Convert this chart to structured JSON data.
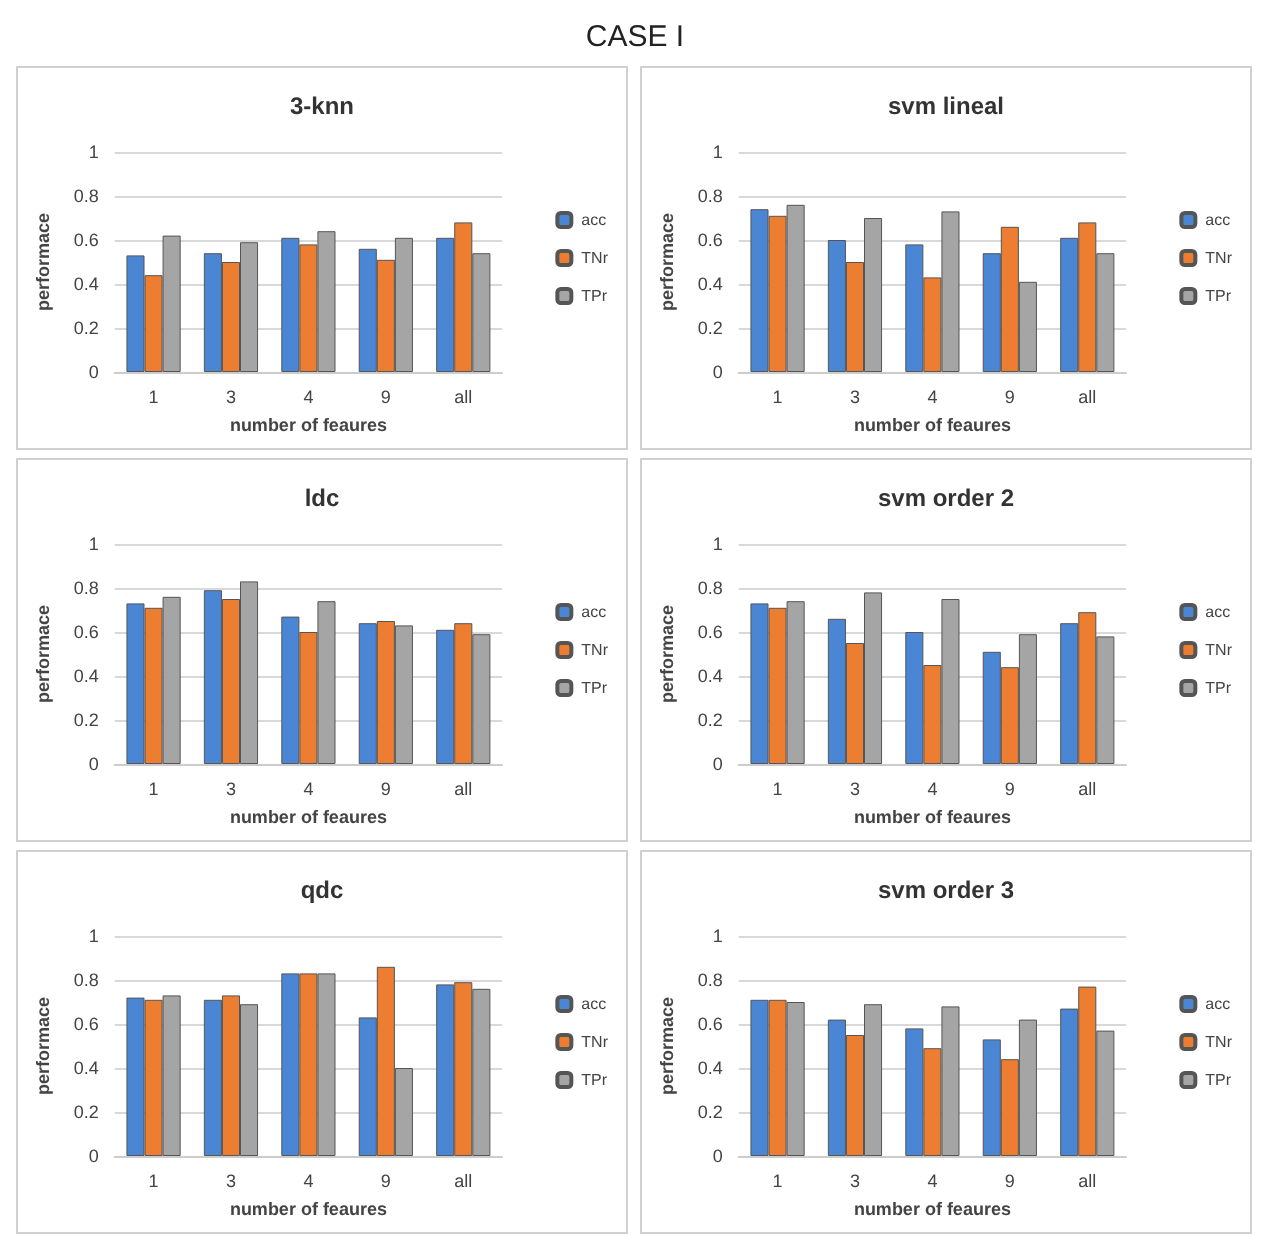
{
  "chart_data": [
    {
      "type": "other",
      "title": "CASE I"
    },
    {
      "type": "bar",
      "title": "3-knn",
      "xlabel": "number of feaures",
      "ylabel": "performace",
      "categories": [
        "1",
        "3",
        "4",
        "9",
        "all"
      ],
      "ylim": [
        0,
        1
      ],
      "yticks": [
        0,
        0.2,
        0.4,
        0.6,
        0.8,
        1
      ],
      "grid": "y",
      "legend": "right",
      "series": [
        {
          "name": "acc",
          "color": "#4a86d4",
          "values": [
            0.53,
            0.54,
            0.61,
            0.56,
            0.61
          ]
        },
        {
          "name": "TNr",
          "color": "#ed7d31",
          "values": [
            0.44,
            0.5,
            0.58,
            0.51,
            0.68
          ]
        },
        {
          "name": "TPr",
          "color": "#a5a5a5",
          "values": [
            0.62,
            0.59,
            0.64,
            0.61,
            0.54
          ]
        }
      ]
    },
    {
      "type": "bar",
      "title": "svm lineal",
      "xlabel": "number of feaures",
      "ylabel": "performace",
      "categories": [
        "1",
        "3",
        "4",
        "9",
        "all"
      ],
      "ylim": [
        0,
        1
      ],
      "yticks": [
        0,
        0.2,
        0.4,
        0.6,
        0.8,
        1
      ],
      "grid": "y",
      "legend": "right",
      "series": [
        {
          "name": "acc",
          "color": "#4a86d4",
          "values": [
            0.74,
            0.6,
            0.58,
            0.54,
            0.61
          ]
        },
        {
          "name": "TNr",
          "color": "#ed7d31",
          "values": [
            0.71,
            0.5,
            0.43,
            0.66,
            0.68
          ]
        },
        {
          "name": "TPr",
          "color": "#a5a5a5",
          "values": [
            0.76,
            0.7,
            0.73,
            0.41,
            0.54
          ]
        }
      ]
    },
    {
      "type": "bar",
      "title": "ldc",
      "xlabel": "number of feaures",
      "ylabel": "performace",
      "categories": [
        "1",
        "3",
        "4",
        "9",
        "all"
      ],
      "ylim": [
        0,
        1
      ],
      "yticks": [
        0,
        0.2,
        0.4,
        0.6,
        0.8,
        1
      ],
      "grid": "y",
      "legend": "right",
      "series": [
        {
          "name": "acc",
          "color": "#4a86d4",
          "values": [
            0.73,
            0.79,
            0.67,
            0.64,
            0.61
          ]
        },
        {
          "name": "TNr",
          "color": "#ed7d31",
          "values": [
            0.71,
            0.75,
            0.6,
            0.65,
            0.64
          ]
        },
        {
          "name": "TPr",
          "color": "#a5a5a5",
          "values": [
            0.76,
            0.83,
            0.74,
            0.63,
            0.59
          ]
        }
      ]
    },
    {
      "type": "bar",
      "title": "svm order 2",
      "xlabel": "number of feaures",
      "ylabel": "performace",
      "categories": [
        "1",
        "3",
        "4",
        "9",
        "all"
      ],
      "ylim": [
        0,
        1
      ],
      "yticks": [
        0,
        0.2,
        0.4,
        0.6,
        0.8,
        1
      ],
      "grid": "y",
      "legend": "right",
      "series": [
        {
          "name": "acc",
          "color": "#4a86d4",
          "values": [
            0.73,
            0.66,
            0.6,
            0.51,
            0.64
          ]
        },
        {
          "name": "TNr",
          "color": "#ed7d31",
          "values": [
            0.71,
            0.55,
            0.45,
            0.44,
            0.69
          ]
        },
        {
          "name": "TPr",
          "color": "#a5a5a5",
          "values": [
            0.74,
            0.78,
            0.75,
            0.59,
            0.58
          ]
        }
      ]
    },
    {
      "type": "bar",
      "title": "qdc",
      "xlabel": "number of feaures",
      "ylabel": "performace",
      "categories": [
        "1",
        "3",
        "4",
        "9",
        "all"
      ],
      "ylim": [
        0,
        1
      ],
      "yticks": [
        0,
        0.2,
        0.4,
        0.6,
        0.8,
        1
      ],
      "grid": "y",
      "legend": "right",
      "series": [
        {
          "name": "acc",
          "color": "#4a86d4",
          "values": [
            0.72,
            0.71,
            0.83,
            0.63,
            0.78
          ]
        },
        {
          "name": "TNr",
          "color": "#ed7d31",
          "values": [
            0.71,
            0.73,
            0.83,
            0.86,
            0.79
          ]
        },
        {
          "name": "TPr",
          "color": "#a5a5a5",
          "values": [
            0.73,
            0.69,
            0.83,
            0.4,
            0.76
          ]
        }
      ]
    },
    {
      "type": "bar",
      "title": "svm order 3",
      "xlabel": "number of feaures",
      "ylabel": "performace",
      "categories": [
        "1",
        "3",
        "4",
        "9",
        "all"
      ],
      "ylim": [
        0,
        1
      ],
      "yticks": [
        0,
        0.2,
        0.4,
        0.6,
        0.8,
        1
      ],
      "grid": "y",
      "legend": "right",
      "series": [
        {
          "name": "acc",
          "color": "#4a86d4",
          "values": [
            0.71,
            0.62,
            0.58,
            0.53,
            0.67
          ]
        },
        {
          "name": "TNr",
          "color": "#ed7d31",
          "values": [
            0.71,
            0.55,
            0.49,
            0.44,
            0.77
          ]
        },
        {
          "name": "TPr",
          "color": "#a5a5a5",
          "values": [
            0.7,
            0.69,
            0.68,
            0.62,
            0.57
          ]
        }
      ]
    }
  ]
}
